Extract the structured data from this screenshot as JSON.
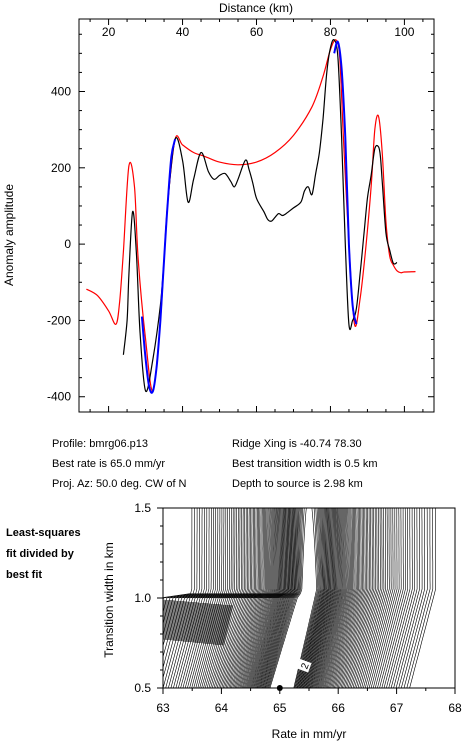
{
  "chart_data": [
    {
      "type": "line",
      "xlabel": "Distance (km)",
      "ylabel": "Anomaly amplitude",
      "xlim": [
        12,
        108
      ],
      "ylim": [
        -440,
        590
      ],
      "xticks": [
        20,
        40,
        60,
        80,
        100
      ],
      "yticks": [
        -400,
        -200,
        0,
        200,
        400
      ],
      "series": [
        {
          "color": "#ff0000",
          "x": [
            14,
            17,
            20,
            22,
            23,
            24,
            25.5,
            27,
            28,
            30,
            32,
            34,
            35,
            36,
            38,
            40,
            43,
            46,
            50,
            55,
            60,
            65,
            70,
            75,
            78,
            80,
            81.5,
            82.5,
            83.5,
            85,
            86.5,
            88,
            89.5,
            91,
            92,
            93,
            94,
            95,
            96,
            97,
            98,
            99,
            100,
            103
          ],
          "y": [
            -118,
            -135,
            -175,
            -210,
            -150,
            -20,
            205,
            150,
            -40,
            -250,
            -385,
            -200,
            -40,
            110,
            275,
            260,
            240,
            230,
            215,
            208,
            215,
            240,
            285,
            360,
            440,
            510,
            535,
            490,
            280,
            0,
            -210,
            -145,
            -15,
            150,
            300,
            335,
            240,
            60,
            -30,
            -55,
            -70,
            -75,
            -73,
            -72
          ]
        },
        {
          "color": "#000000",
          "x": [
            24,
            25,
            25.5,
            26.5,
            27.5,
            28.5,
            30,
            32,
            34,
            35,
            36,
            38,
            40,
            41.5,
            43,
            45,
            47,
            48.5,
            50,
            51.5,
            53,
            54,
            55,
            57,
            58,
            59,
            60,
            62,
            63,
            64,
            65,
            66,
            67,
            68,
            70,
            72,
            73,
            74,
            75,
            76,
            77,
            78,
            79,
            80,
            81,
            82,
            83,
            84,
            85,
            86,
            87,
            88,
            89,
            90,
            91,
            92,
            93,
            93.5,
            94,
            95,
            96,
            97,
            98
          ],
          "y": [
            -290,
            -200,
            -80,
            85,
            -20,
            -230,
            -385,
            -300,
            -160,
            -40,
            110,
            275,
            220,
            110,
            170,
            240,
            190,
            170,
            180,
            185,
            165,
            150,
            170,
            220,
            195,
            160,
            120,
            85,
            65,
            60,
            70,
            80,
            75,
            80,
            95,
            110,
            140,
            150,
            130,
            185,
            240,
            330,
            450,
            515,
            535,
            490,
            280,
            0,
            -210,
            -200,
            -170,
            -80,
            20,
            120,
            180,
            250,
            255,
            230,
            165,
            30,
            -15,
            -50,
            -48
          ]
        },
        {
          "color": "#0000ff",
          "x": [
            29,
            30,
            31,
            32,
            33,
            34,
            35,
            36,
            37,
            38,
            81,
            82,
            83,
            84,
            85,
            86,
            87
          ],
          "y": [
            -190,
            -300,
            -375,
            -385,
            -320,
            -200,
            -40,
            110,
            230,
            275,
            500,
            530,
            460,
            280,
            0,
            -160,
            -210
          ]
        }
      ]
    },
    {
      "type": "heatmap",
      "xlabel": "Rate in mm/yr",
      "ylabel": "Transition width in km",
      "xlim": [
        63,
        68
      ],
      "ylim": [
        0.5,
        1.5
      ],
      "xticks": [
        63,
        64,
        65,
        66,
        67,
        68
      ],
      "xtick_labels": [
        "63",
        "64",
        "65",
        "66",
        "67",
        "68"
      ],
      "yticks": [
        0.5,
        1.0,
        1.5
      ],
      "ytick_labels": [
        "0.5",
        "1.0",
        "1.5"
      ],
      "best_fit": {
        "x": 65.0,
        "y": 0.5
      },
      "contour_label": "2"
    }
  ],
  "top_tick_labels": [
    "20",
    "40",
    "60",
    "80",
    "100"
  ],
  "left_tick_labels": [
    "400",
    "200",
    "0",
    "-200",
    "-400"
  ],
  "info": {
    "profile": "Profile: bmrg06.p13",
    "best_rate": "Best rate is 65.0 mm/yr",
    "proj_az": "Proj. Az: 50.0 deg. CW of N",
    "ridge_xing": "Ridge Xing is -40.74 78.30",
    "best_width": "Best transition width is 0.5 km",
    "depth": "Depth to source is   2.98 km"
  },
  "side_note": [
    "Least-squares",
    "fit divided by",
    "best fit"
  ]
}
